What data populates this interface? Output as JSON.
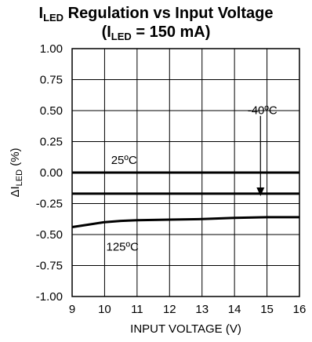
{
  "chart_data": {
    "type": "line",
    "title_line1": {
      "main": "I",
      "sub": "LED",
      "rest": " Regulation vs Input Voltage"
    },
    "title_line2": {
      "open": "(I",
      "sub": "LED",
      "rest": " = 150 mA)"
    },
    "xlabel": "INPUT VOLTAGE (V)",
    "ylabel": {
      "prefix": "ΔI",
      "sub": "LED",
      "suffix": " (%)"
    },
    "xlim": [
      9,
      16
    ],
    "ylim": [
      -1.0,
      1.0
    ],
    "xticks": [
      "9",
      "10",
      "11",
      "12",
      "13",
      "14",
      "15",
      "16"
    ],
    "yticks": [
      "1.00",
      "0.75",
      "0.50",
      "0.25",
      "0.00",
      "-0.25",
      "-0.50",
      "-0.75",
      "-1.00"
    ],
    "grid": true,
    "series": [
      {
        "name": "25ºC",
        "x": [
          9,
          10,
          11,
          12,
          13,
          14,
          15,
          16
        ],
        "values": [
          0.0,
          0.0,
          0.0,
          0.0,
          0.0,
          0.0,
          0.0,
          0.0
        ]
      },
      {
        "name": "-40ºC",
        "x": [
          9,
          10,
          11,
          12,
          13,
          14,
          15,
          16
        ],
        "values": [
          -0.17,
          -0.17,
          -0.17,
          -0.17,
          -0.17,
          -0.17,
          -0.17,
          -0.17
        ]
      },
      {
        "name": "125ºC",
        "x": [
          9,
          9.5,
          10,
          10.5,
          11,
          12,
          13,
          14,
          15,
          16
        ],
        "values": [
          -0.44,
          -0.42,
          -0.4,
          -0.39,
          -0.385,
          -0.38,
          -0.375,
          -0.365,
          -0.36,
          -0.36
        ]
      }
    ],
    "annotations": [
      {
        "text": "25ºC",
        "x": 10.2,
        "y": 0.07
      },
      {
        "text": "-40ºC",
        "x": 14.4,
        "y": 0.47,
        "arrow_to": [
          14.8,
          -0.19
        ]
      },
      {
        "text": "125ºC",
        "x": 10.05,
        "y": -0.63
      }
    ]
  }
}
